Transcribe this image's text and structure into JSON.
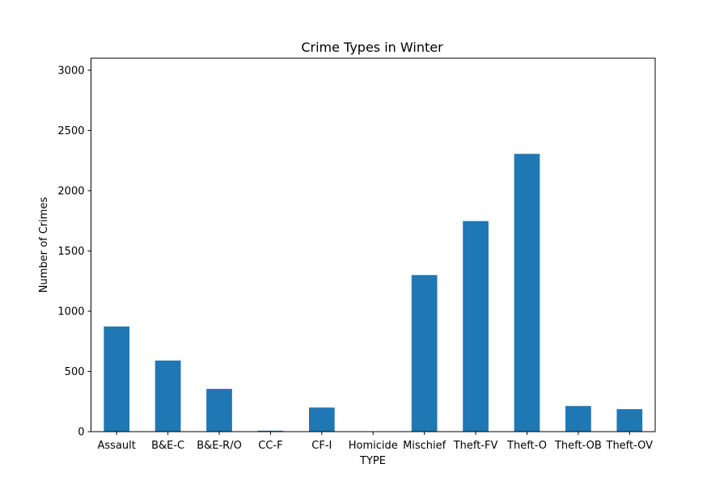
{
  "chart_data": {
    "type": "bar",
    "title": "Crime Types in Winter",
    "xlabel": "TYPE",
    "ylabel": "Number of Crimes",
    "categories": [
      "Assault",
      "B&E-C",
      "B&E-R/O",
      "CC-F",
      "CF-I",
      "Homicide",
      "Mischief",
      "Theft-FV",
      "Theft-O",
      "Theft-OB",
      "Theft-OV"
    ],
    "values": [
      873,
      590,
      355,
      8,
      200,
      2,
      1300,
      1748,
      2306,
      213,
      187
    ],
    "ylim": [
      0,
      3100
    ],
    "yticks": [
      0,
      500,
      1000,
      1500,
      2000,
      2500,
      3000
    ],
    "grid": false,
    "bar_color": "#1f77b4"
  }
}
